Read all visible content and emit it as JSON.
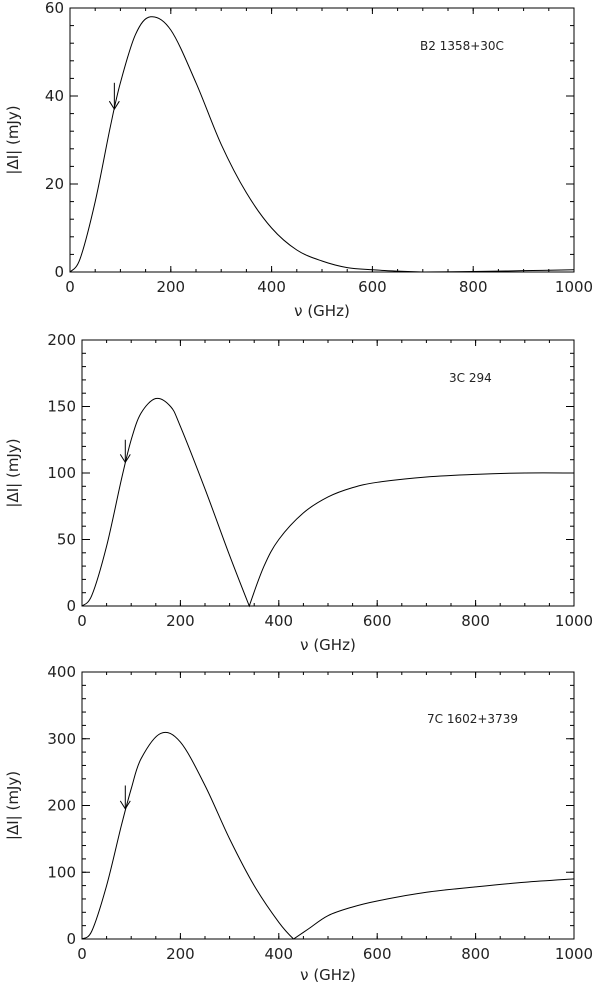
{
  "chart_data": [
    {
      "type": "line",
      "xlabel": "ν (GHz)",
      "ylabel": "|ΔI| (mJy)",
      "annotation": "B2 1358+30C",
      "xlim": [
        0,
        1000
      ],
      "ylim": [
        0,
        60
      ],
      "xticks": [
        "0",
        "200",
        "400",
        "600",
        "800",
        "1000"
      ],
      "yticks": [
        "0",
        "20",
        "40",
        "60"
      ],
      "arrow": {
        "x": 88,
        "y_from": 43,
        "y_to": 37
      },
      "series": [
        {
          "x": [
            0,
            20,
            50,
            80,
            100,
            130,
            160,
            200,
            250,
            300,
            350,
            400,
            450,
            500,
            550,
            600,
            650,
            700,
            800,
            900,
            1000
          ],
          "values": [
            0,
            3,
            16,
            33,
            43,
            54,
            58,
            55,
            43,
            29,
            18,
            10,
            5,
            2.5,
            1,
            0.5,
            0.2,
            0,
            0.1,
            0.3,
            0.5
          ]
        }
      ]
    },
    {
      "type": "line",
      "xlabel": "ν (GHz)",
      "ylabel": "|ΔI| (mJy)",
      "annotation": "3C 294",
      "xlim": [
        0,
        1000
      ],
      "ylim": [
        0,
        200
      ],
      "xticks": [
        "0",
        "200",
        "400",
        "600",
        "800",
        "1000"
      ],
      "yticks": [
        "0",
        "50",
        "100",
        "150",
        "200"
      ],
      "arrow": {
        "x": 88,
        "y_from": 125,
        "y_to": 108
      },
      "series": [
        {
          "x": [
            0,
            20,
            50,
            80,
            100,
            120,
            150,
            180,
            200,
            250,
            300,
            340,
            370,
            400,
            450,
            500,
            550,
            600,
            700,
            800,
            900,
            1000
          ],
          "values": [
            0,
            8,
            45,
            95,
            125,
            145,
            156,
            150,
            135,
            88,
            38,
            0,
            30,
            50,
            70,
            82,
            89,
            93,
            97,
            99,
            100,
            100
          ]
        }
      ]
    },
    {
      "type": "line",
      "xlabel": "ν (GHz)",
      "ylabel": "|ΔI| (mJy)",
      "annotation": "7C 1602+3739",
      "xlim": [
        0,
        1000
      ],
      "ylim": [
        0,
        400
      ],
      "xticks": [
        "0",
        "200",
        "400",
        "600",
        "800",
        "1000"
      ],
      "yticks": [
        "0",
        "100",
        "200",
        "300",
        "400"
      ],
      "arrow": {
        "x": 88,
        "y_from": 230,
        "y_to": 195
      },
      "series": [
        {
          "x": [
            0,
            20,
            50,
            80,
            100,
            120,
            160,
            200,
            250,
            300,
            350,
            400,
            430,
            460,
            500,
            550,
            600,
            700,
            800,
            900,
            1000
          ],
          "values": [
            0,
            12,
            80,
            170,
            225,
            270,
            308,
            295,
            230,
            150,
            80,
            25,
            0,
            15,
            35,
            48,
            57,
            70,
            78,
            85,
            90
          ]
        }
      ]
    }
  ]
}
